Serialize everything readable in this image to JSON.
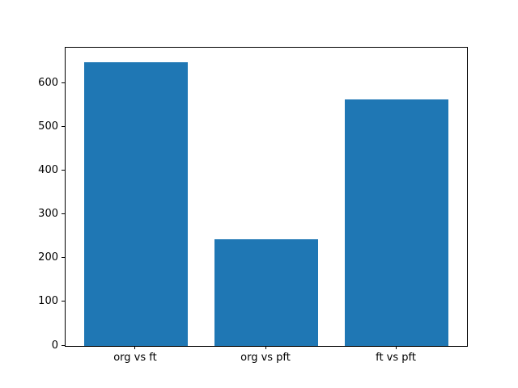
{
  "chart_data": {
    "type": "bar",
    "categories": [
      "org vs ft",
      "org vs pft",
      "ft vs pft"
    ],
    "values": [
      650,
      245,
      565
    ],
    "title": "",
    "xlabel": "",
    "ylabel": "",
    "ylim": [
      0,
      682.5
    ],
    "yticks": [
      0,
      100,
      200,
      300,
      400,
      500,
      600
    ],
    "bar_width_fraction": 0.8,
    "bar_color": "#1f77b4",
    "axis_color": "#000000",
    "background_color": "#ffffff",
    "grid": false,
    "legend": null
  }
}
